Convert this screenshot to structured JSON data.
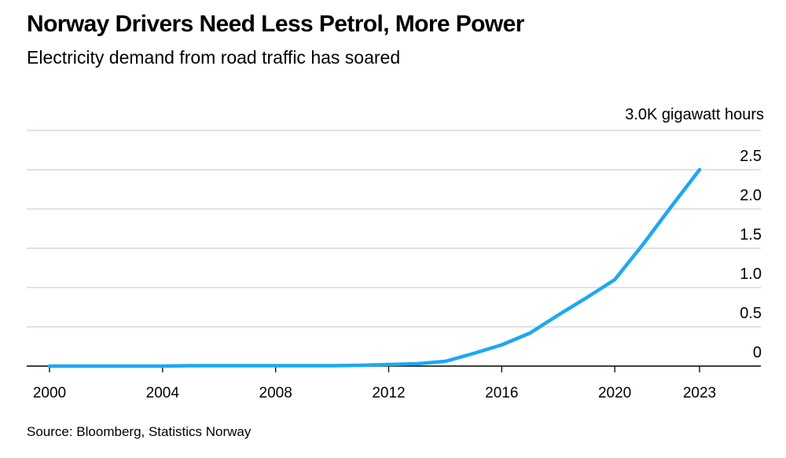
{
  "title": "Norway Drivers Need Less Petrol, More Power",
  "subtitle": "Electricity demand from road traffic has soared",
  "source": "Source: Bloomberg, Statistics Norway",
  "colors": {
    "line": "#1DA8F2",
    "grid": "#d9d9d9",
    "axis": "#000000"
  },
  "chart_data": {
    "type": "line",
    "title": "Norway Drivers Need Less Petrol, More Power",
    "subtitle": "Electricity demand from road traffic has soared",
    "ylabel": "gigawatt hours",
    "y_unit_label": "3.0K gigawatt hours",
    "ylim": [
      0,
      3.0
    ],
    "y_ticks": [
      0,
      0.5,
      1.0,
      1.5,
      2.0,
      2.5
    ],
    "y_tick_labels": [
      "0",
      "0.5",
      "1.0",
      "1.5",
      "2.0",
      "2.5"
    ],
    "xlim": [
      2000,
      2024.2
    ],
    "x_ticks": [
      2000,
      2004,
      2008,
      2012,
      2016,
      2020,
      2023
    ],
    "x_tick_labels": [
      "2000",
      "2004",
      "2008",
      "2012",
      "2016",
      "2020",
      "2023"
    ],
    "series": [
      {
        "name": "Electricity demand from road traffic",
        "x": [
          2000,
          2001,
          2002,
          2003,
          2004,
          2005,
          2006,
          2007,
          2008,
          2009,
          2010,
          2011,
          2012,
          2013,
          2014,
          2015,
          2016,
          2017,
          2018,
          2019,
          2020,
          2021,
          2022,
          2023
        ],
        "values": [
          0,
          0,
          0,
          0,
          0,
          0.005,
          0.005,
          0.005,
          0.005,
          0.005,
          0.005,
          0.01,
          0.02,
          0.03,
          0.06,
          0.16,
          0.27,
          0.42,
          0.65,
          0.87,
          1.1,
          1.55,
          2.03,
          2.5
        ]
      }
    ]
  }
}
